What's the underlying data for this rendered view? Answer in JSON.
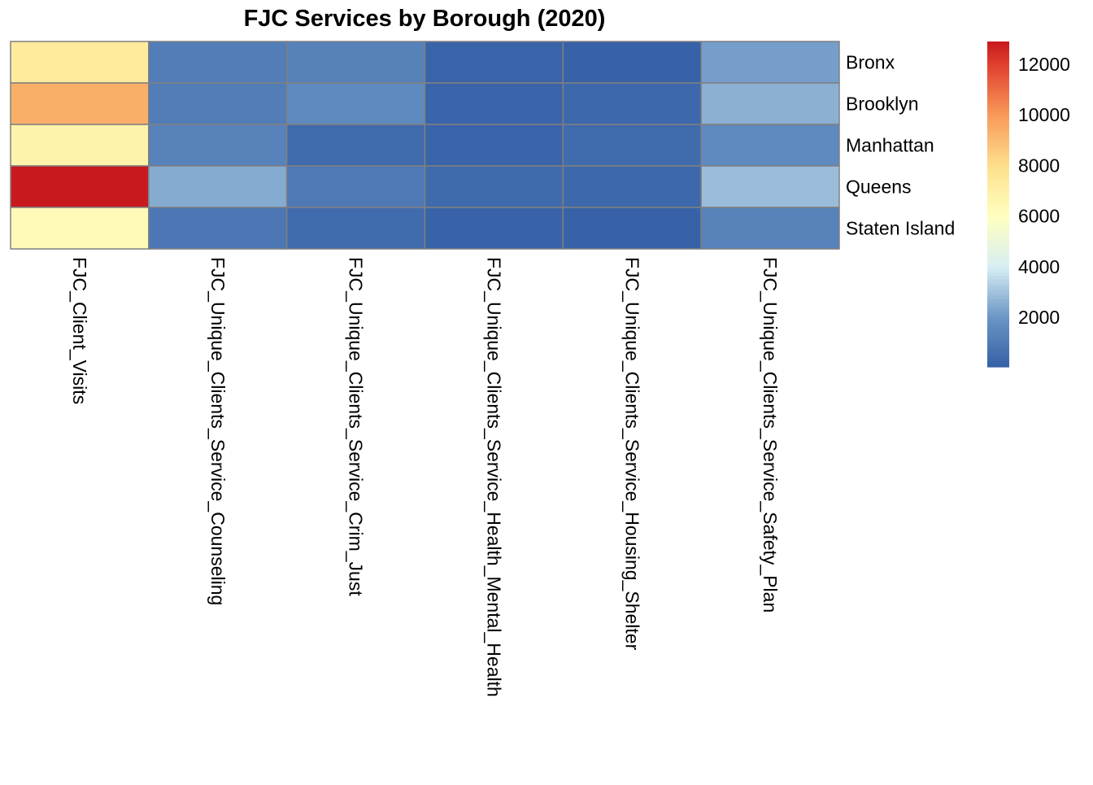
{
  "chart_data": {
    "type": "heatmap",
    "title": "FJC Services by Borough (2020)",
    "rows": [
      "Bronx",
      "Brooklyn",
      "Manhattan",
      "Queens",
      "Staten Island"
    ],
    "columns": [
      "FJC_Client_Visits",
      "FJC_Unique_Clients_Service_Counseling",
      "FJC_Unique_Clients_Service_Crim_Just",
      "FJC_Unique_Clients_Service_Health_Mental_Health",
      "FJC_Unique_Clients_Service_Housing_Shelter",
      "FJC_Unique_Clients_Service_Safety_Plan"
    ],
    "values": [
      [
        7300,
        1100,
        1250,
        200,
        100,
        2200
      ],
      [
        9400,
        1100,
        1600,
        200,
        350,
        2600
      ],
      [
        6800,
        1300,
        450,
        200,
        450,
        1600
      ],
      [
        12900,
        2500,
        950,
        400,
        350,
        2900
      ],
      [
        6300,
        900,
        450,
        150,
        100,
        1300
      ]
    ],
    "color_scale": {
      "range": [
        40,
        12900
      ],
      "ticks": [
        2000,
        4000,
        6000,
        8000,
        10000,
        12000
      ],
      "tick_labels": [
        "2000",
        "4000",
        "6000",
        "8000",
        "10000",
        "12000"
      ],
      "colors": [
        "#3560a6",
        "#6a95c5",
        "#d8eef4",
        "#ffffbf",
        "#fde08c",
        "#f99a5a",
        "#e0402f",
        "#c8191e"
      ],
      "stops": [
        40,
        2000,
        4000,
        6000,
        8000,
        10000,
        12000,
        12900
      ]
    },
    "cell_border_color": "#808080",
    "legend_placement": "right"
  }
}
